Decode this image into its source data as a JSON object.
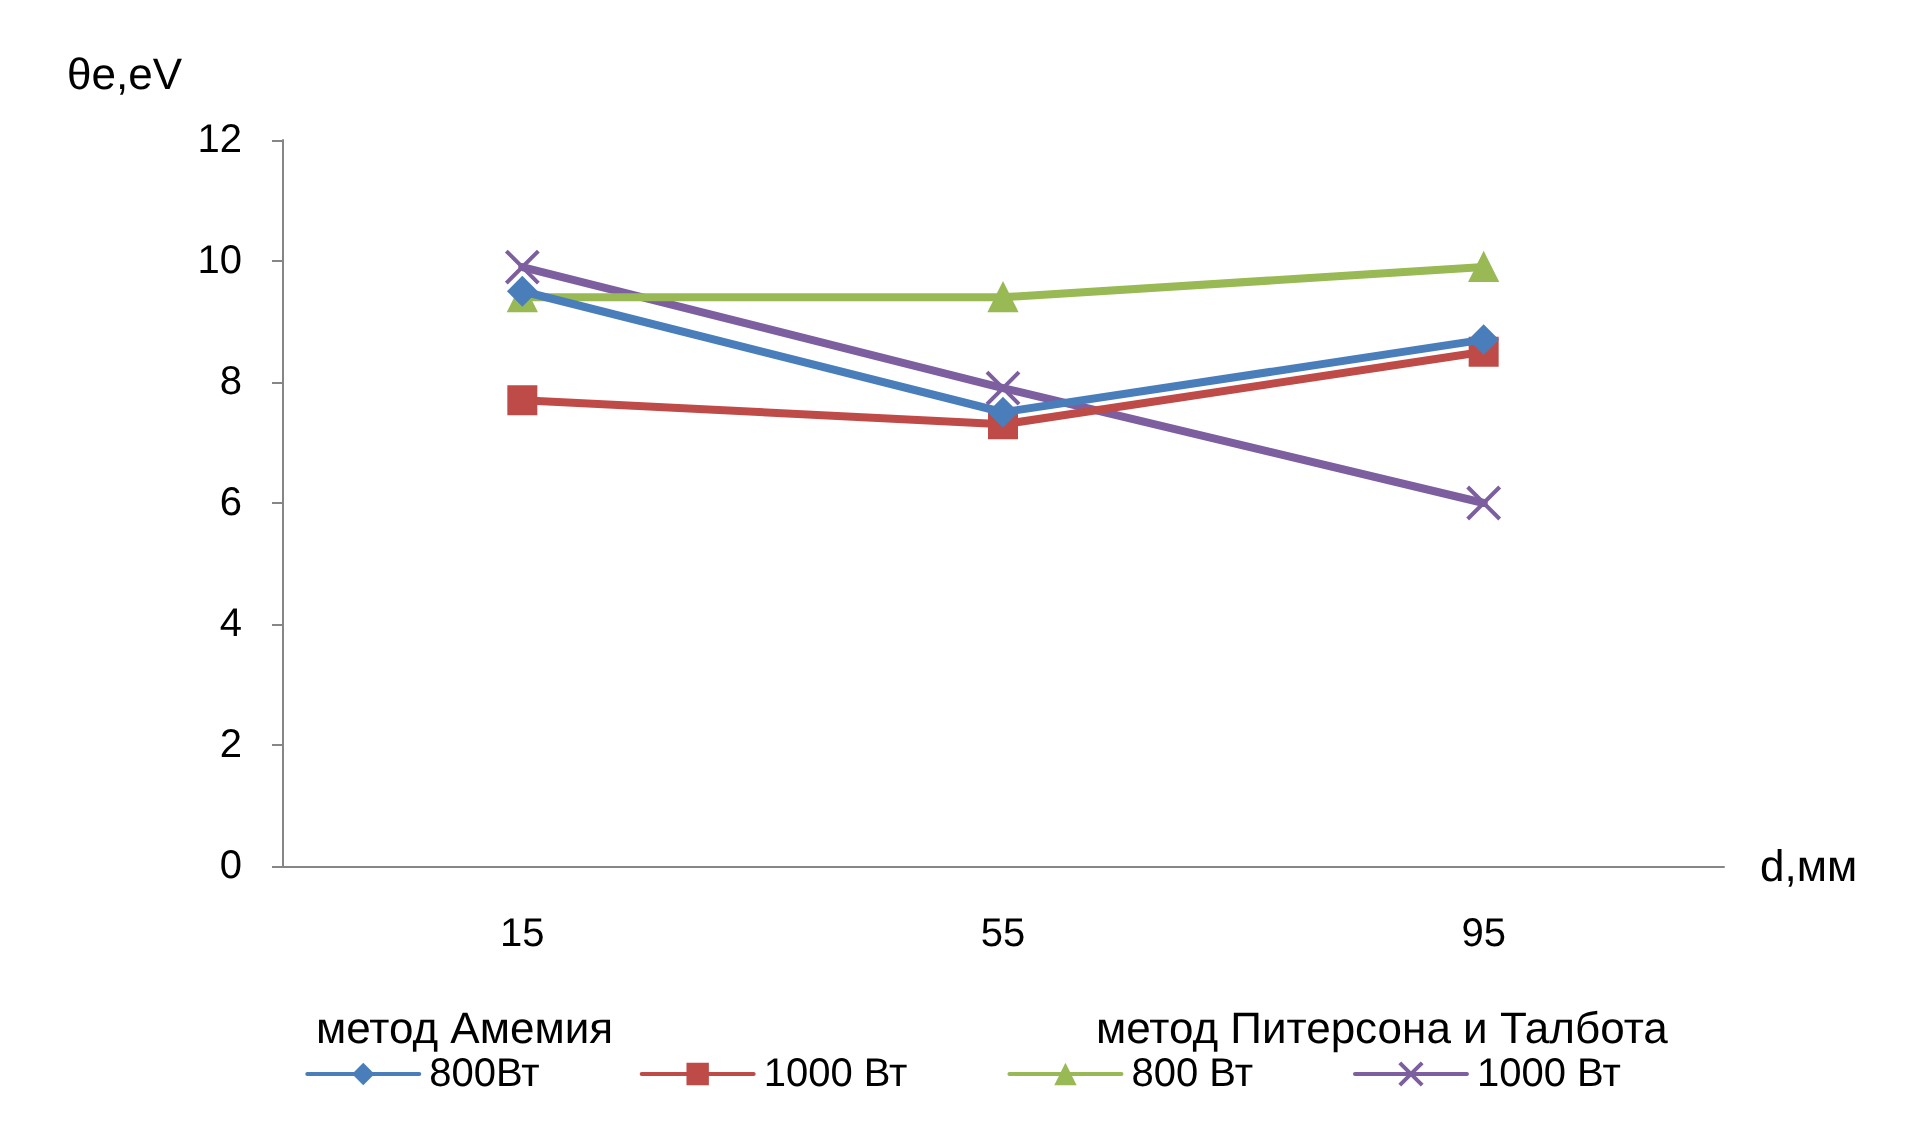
{
  "chart_data": {
    "type": "line",
    "xlabel": "d,мм",
    "ylabel": "θe,eV",
    "categories": [
      "15",
      "55",
      "95"
    ],
    "series": [
      {
        "name": "800Вт",
        "color": "#4a7ebb",
        "marker": "diamond",
        "values": [
          9.5,
          7.5,
          8.7
        ]
      },
      {
        "name": "1000 Вт",
        "color": "#be4b48",
        "marker": "square",
        "values": [
          7.7,
          7.3,
          8.5
        ]
      },
      {
        "name": "800 Вт",
        "color": "#98b954",
        "marker": "triangle",
        "values": [
          9.4,
          9.4,
          9.9
        ]
      },
      {
        "name": "1000 Вт",
        "color": "#7d5fa0",
        "marker": "cross",
        "values": [
          9.9,
          7.9,
          6
        ]
      }
    ],
    "ylim": [
      0,
      12
    ],
    "yticks": [
      0,
      2,
      4,
      6,
      8,
      10,
      12
    ],
    "grid": false,
    "legend": "bottom",
    "annotations": [
      "метод Амемия",
      "метод Питерсона и Талбота"
    ]
  }
}
